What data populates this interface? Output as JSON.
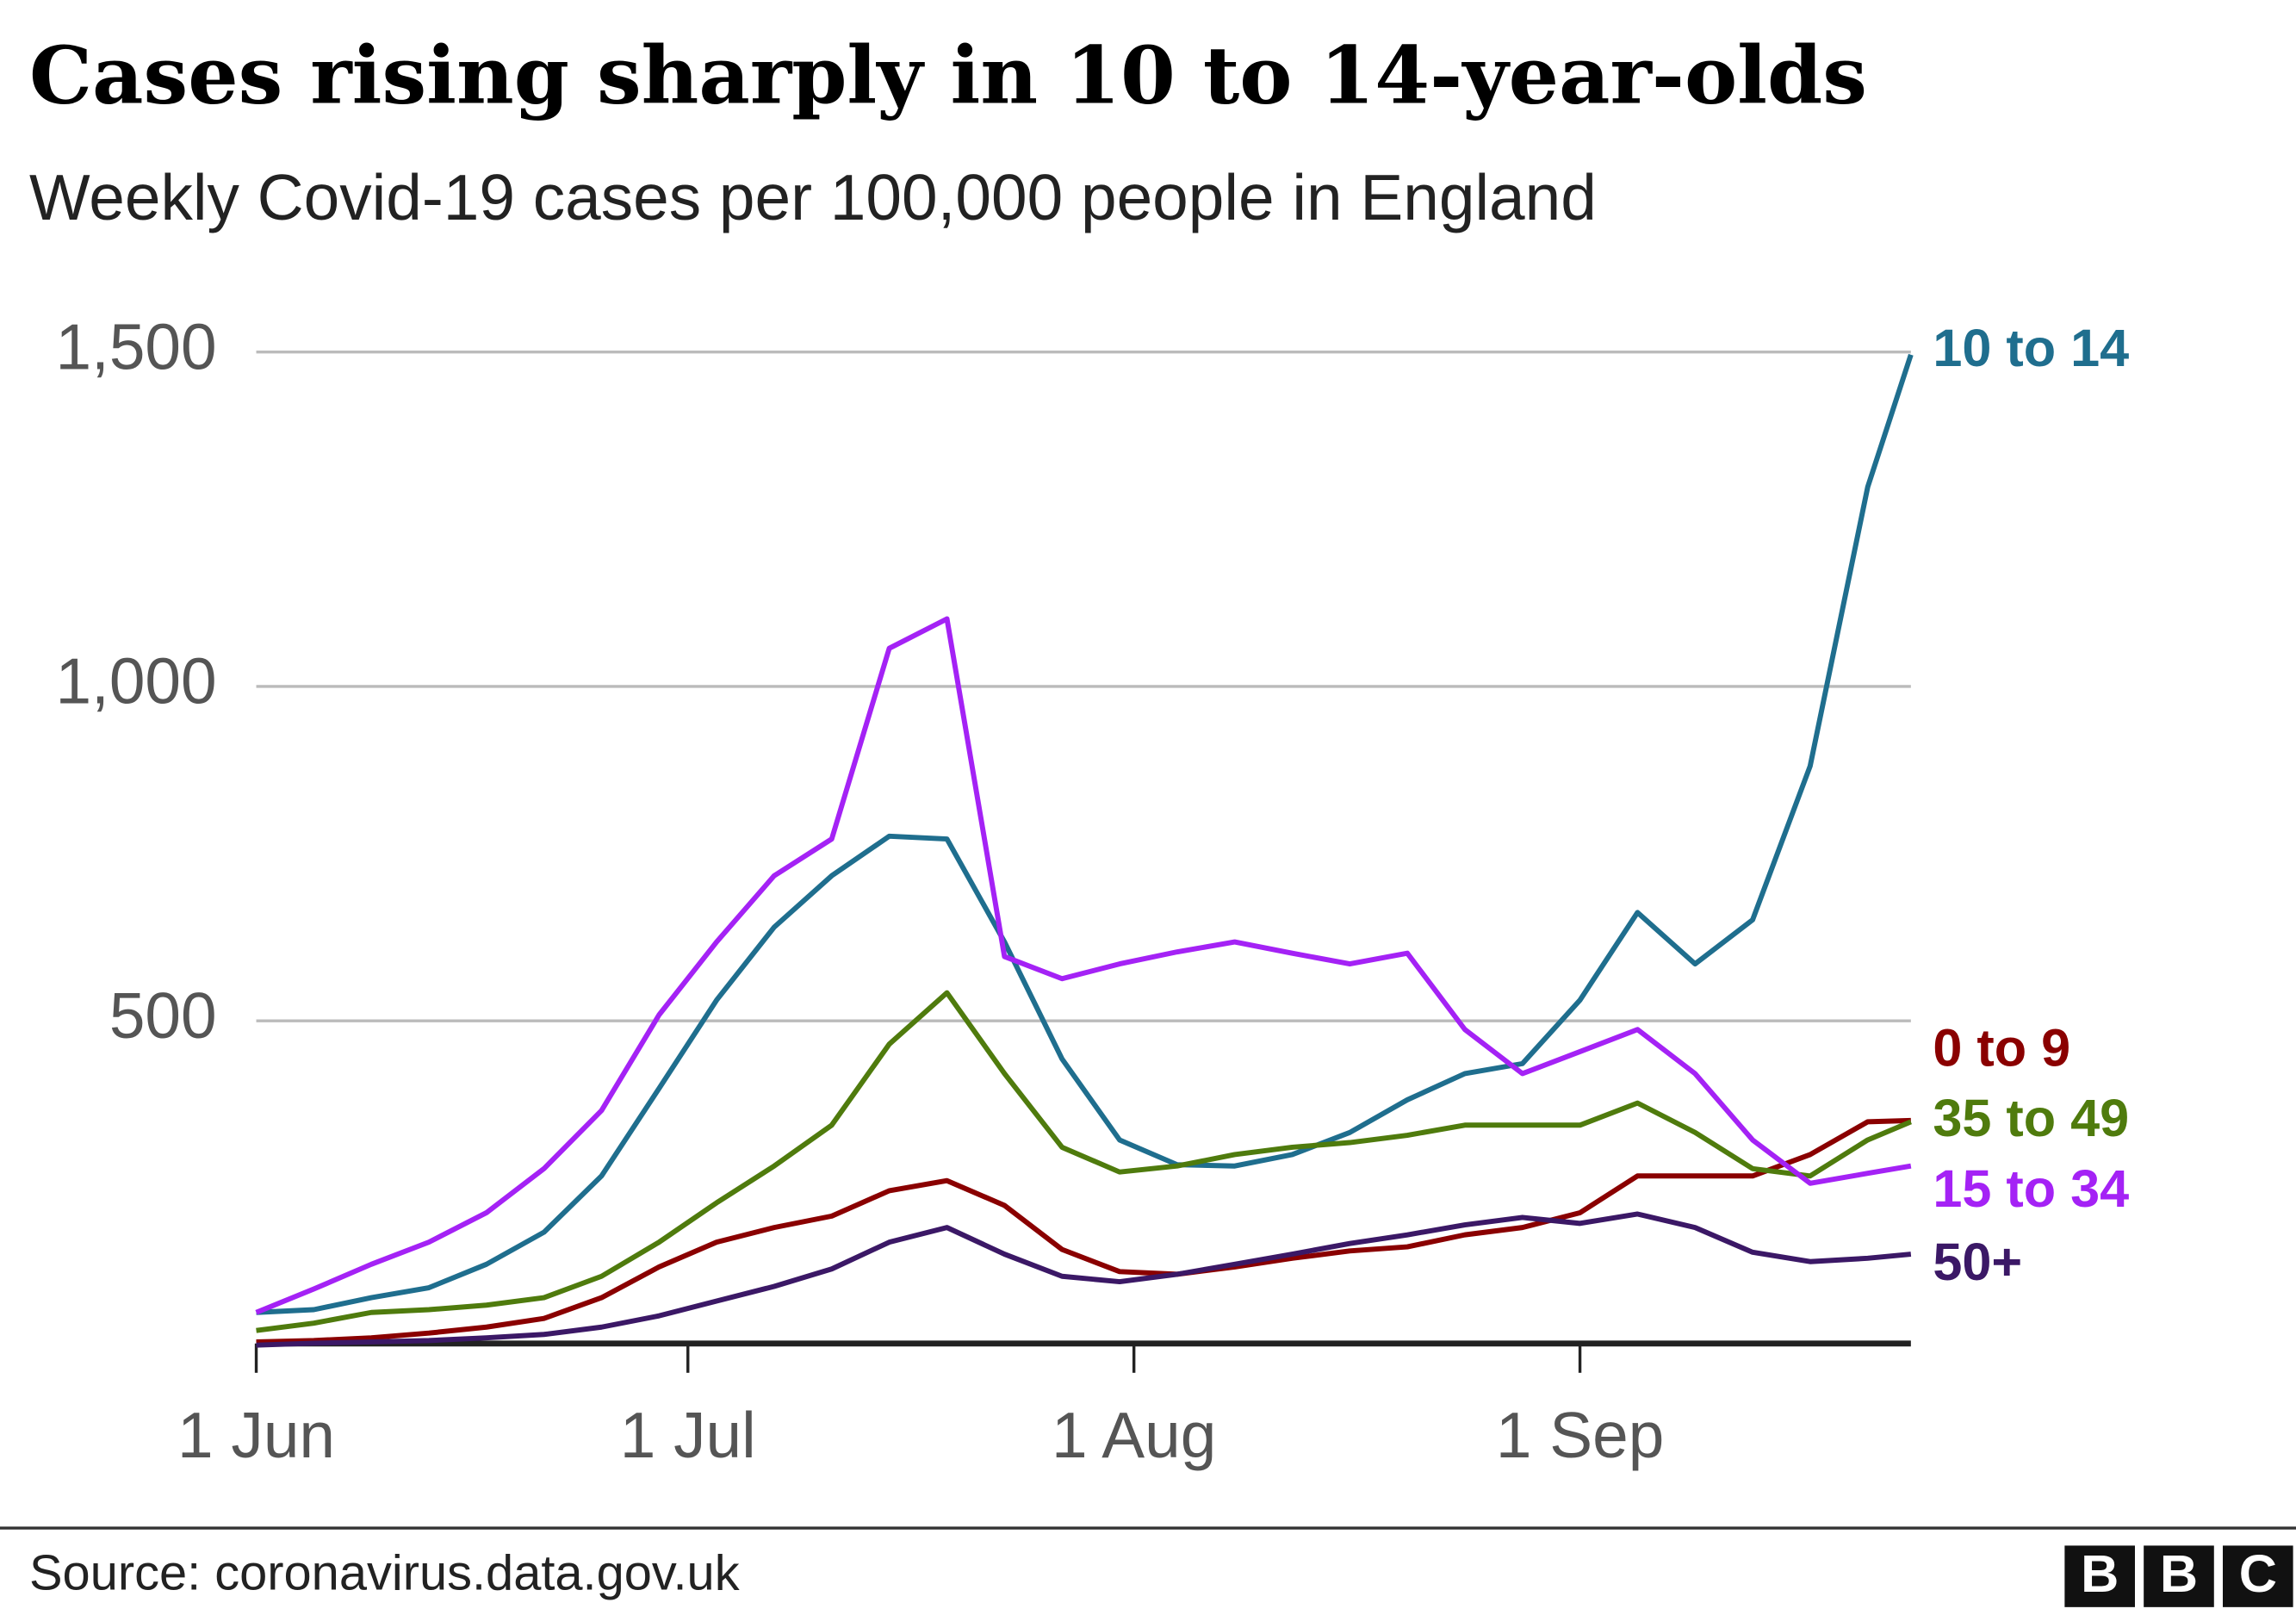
{
  "chart_data": {
    "type": "line",
    "title": "Cases rising sharply in 10 to 14-year-olds",
    "subtitle": "Weekly Covid-19 cases per 100,000 people in England",
    "source": "Source: coronavirus.data.gov.uk",
    "x": [
      "1 Jun",
      "5 Jun",
      "9 Jun",
      "13 Jun",
      "17 Jun",
      "21 Jun",
      "25 Jun",
      "29 Jun",
      "3 Jul",
      "7 Jul",
      "11 Jul",
      "15 Jul",
      "19 Jul",
      "23 Jul",
      "27 Jul",
      "31 Jul",
      "4 Aug",
      "8 Aug",
      "12 Aug",
      "16 Aug",
      "20 Aug",
      "24 Aug",
      "28 Aug",
      "1 Sep",
      "5 Sep",
      "9 Sep",
      "13 Sep",
      "17 Sep",
      "21 Sep",
      "24 Sep"
    ],
    "xlim": [
      "1 Jun",
      "24 Sep"
    ],
    "xticks": [
      "1 Jun",
      "1 Jul",
      "1 Aug",
      "1 Sep"
    ],
    "ylim": [
      0,
      1500
    ],
    "yticks": [
      {
        "value": 500,
        "label": "500"
      },
      {
        "value": 1000,
        "label": "1,000"
      },
      {
        "value": 1500,
        "label": "1,500"
      }
    ],
    "grid": true,
    "series": [
      {
        "name": "10 to 14",
        "color": "#1f6e8e",
        "values": [
          64,
          68,
          86,
          101,
          136,
          184,
          268,
          399,
          531,
          640,
          717,
          776,
          772,
          618,
          443,
          322,
          285,
          283,
          300,
          333,
          382,
          421,
          436,
          531,
          662,
          585,
          651,
          881,
          1298,
          1496
        ]
      },
      {
        "name": "0 to 9",
        "color": "#8a0000",
        "values": [
          20,
          22,
          26,
          33,
          42,
          55,
          86,
          132,
          169,
          191,
          208,
          246,
          261,
          224,
          158,
          125,
          121,
          132,
          145,
          156,
          162,
          180,
          191,
          213,
          268,
          268,
          268,
          300,
          349,
          351
        ]
      },
      {
        "name": "35 to 49",
        "color": "#4f7b0d",
        "values": [
          37,
          48,
          64,
          68,
          75,
          86,
          118,
          169,
          228,
          283,
          344,
          465,
          542,
          421,
          311,
          274,
          283,
          300,
          311,
          318,
          329,
          344,
          344,
          344,
          377,
          333,
          279,
          268,
          322,
          349
        ]
      },
      {
        "name": "15 to 34",
        "color": "#a422f5",
        "values": [
          64,
          99,
          136,
          169,
          213,
          279,
          366,
          509,
          618,
          717,
          772,
          1057,
          1101,
          596,
          563,
          585,
          603,
          618,
          601,
          585,
          601,
          487,
          421,
          454,
          487,
          421,
          322,
          257,
          272,
          283
        ]
      },
      {
        "name": "50+",
        "color": "#3b1866",
        "values": [
          15,
          18,
          20,
          22,
          26,
          31,
          42,
          59,
          81,
          103,
          129,
          169,
          191,
          151,
          118,
          110,
          121,
          136,
          151,
          167,
          180,
          195,
          206,
          197,
          211,
          191,
          154,
          140,
          145,
          151
        ]
      }
    ]
  },
  "logo": [
    "B",
    "B",
    "C"
  ]
}
